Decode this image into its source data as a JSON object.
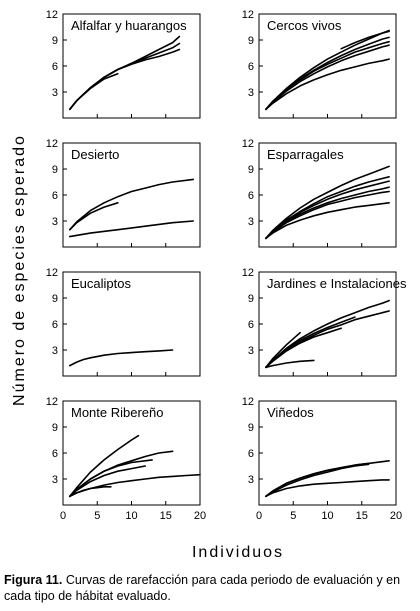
{
  "caption": {
    "label": "Figura 11.",
    "text": "Curvas de rarefacción para cada periodo de evaluación y en cada tipo de hábitat evaluado."
  },
  "axes": {
    "ylabel": "Número de especies esperado",
    "xlabel": "Individuos"
  },
  "chart_data": [
    {
      "type": "line",
      "title": "Alfalfar y huarangos",
      "xlim": [
        0,
        20
      ],
      "ylim": [
        0,
        12
      ],
      "xticks": [
        0,
        5,
        10,
        15,
        20
      ],
      "yticks": [
        3,
        6,
        9,
        12
      ],
      "series": [
        {
          "x": [
            1,
            2,
            4,
            6,
            8,
            10,
            12,
            14,
            16,
            17
          ],
          "y": [
            1.0,
            2.0,
            3.5,
            4.7,
            5.6,
            6.3,
            7.1,
            7.9,
            8.7,
            9.4
          ]
        },
        {
          "x": [
            1,
            2,
            4,
            6,
            8,
            10,
            12,
            14,
            16,
            17
          ],
          "y": [
            1.0,
            2.0,
            3.5,
            4.7,
            5.6,
            6.3,
            6.9,
            7.5,
            8.1,
            8.6
          ]
        },
        {
          "x": [
            1,
            2,
            4,
            6,
            8,
            10,
            12,
            14,
            16,
            17
          ],
          "y": [
            1.0,
            2.0,
            3.5,
            4.7,
            5.6,
            6.2,
            6.7,
            7.1,
            7.6,
            7.9
          ]
        },
        {
          "x": [
            1,
            2,
            4,
            6,
            7,
            8
          ],
          "y": [
            1.0,
            2.0,
            3.4,
            4.5,
            4.8,
            5.1
          ]
        }
      ]
    },
    {
      "type": "line",
      "title": "Cercos vivos",
      "xlim": [
        0,
        20
      ],
      "ylim": [
        0,
        12
      ],
      "xticks": [
        0,
        5,
        10,
        15,
        20
      ],
      "yticks": [
        3,
        6,
        9,
        12
      ],
      "series": [
        {
          "x": [
            1,
            2,
            4,
            6,
            8,
            10,
            12,
            14,
            16,
            18,
            19
          ],
          "y": [
            1.0,
            1.9,
            3.4,
            4.7,
            5.8,
            6.8,
            7.6,
            8.4,
            9.1,
            9.8,
            10.1
          ]
        },
        {
          "x": [
            1,
            2,
            4,
            6,
            8,
            10,
            12,
            14,
            16,
            18,
            19
          ],
          "y": [
            1.0,
            1.9,
            3.3,
            4.5,
            5.5,
            6.4,
            7.2,
            7.9,
            8.5,
            9.1,
            9.3
          ]
        },
        {
          "x": [
            1,
            2,
            4,
            6,
            8,
            10,
            12,
            14,
            16,
            18,
            19
          ],
          "y": [
            1.0,
            1.9,
            3.3,
            4.4,
            5.4,
            6.2,
            6.9,
            7.6,
            8.1,
            8.6,
            8.8
          ]
        },
        {
          "x": [
            1,
            2,
            4,
            6,
            8,
            10,
            12,
            14,
            16,
            18,
            19
          ],
          "y": [
            1.0,
            1.8,
            3.1,
            4.2,
            5.1,
            5.9,
            6.6,
            7.2,
            7.7,
            8.2,
            8.4
          ]
        },
        {
          "x": [
            1,
            2,
            4,
            6,
            8,
            10,
            12,
            14,
            16,
            18,
            19
          ],
          "y": [
            1.0,
            1.7,
            2.8,
            3.7,
            4.4,
            5.0,
            5.5,
            5.9,
            6.3,
            6.6,
            6.8
          ]
        },
        {
          "x": [
            12,
            14,
            16,
            18,
            19
          ],
          "y": [
            8.0,
            8.7,
            9.3,
            9.8,
            10.0
          ]
        }
      ]
    },
    {
      "type": "line",
      "title": "Desierto",
      "xlim": [
        0,
        20
      ],
      "ylim": [
        0,
        12
      ],
      "xticks": [
        0,
        5,
        10,
        15,
        20
      ],
      "yticks": [
        3,
        6,
        9,
        12
      ],
      "series": [
        {
          "x": [
            1,
            2,
            4,
            6,
            8,
            10,
            12,
            14,
            16,
            19
          ],
          "y": [
            2.0,
            2.9,
            4.2,
            5.1,
            5.8,
            6.4,
            6.8,
            7.2,
            7.5,
            7.8
          ]
        },
        {
          "x": [
            1,
            2,
            4,
            6,
            8
          ],
          "y": [
            2.0,
            2.8,
            3.9,
            4.6,
            5.1
          ]
        },
        {
          "x": [
            1,
            4,
            8,
            12,
            16,
            19
          ],
          "y": [
            1.2,
            1.6,
            2.0,
            2.4,
            2.8,
            3.0
          ]
        }
      ]
    },
    {
      "type": "line",
      "title": "Esparragales",
      "xlim": [
        0,
        20
      ],
      "ylim": [
        0,
        12
      ],
      "xticks": [
        0,
        5,
        10,
        15,
        20
      ],
      "yticks": [
        3,
        6,
        9,
        12
      ],
      "series": [
        {
          "x": [
            1,
            2,
            4,
            6,
            8,
            10,
            12,
            14,
            16,
            18,
            19
          ],
          "y": [
            1.0,
            1.9,
            3.3,
            4.5,
            5.5,
            6.3,
            7.1,
            7.8,
            8.4,
            9.0,
            9.3
          ]
        },
        {
          "x": [
            1,
            2,
            4,
            6,
            8,
            10,
            12,
            14,
            16,
            18,
            19
          ],
          "y": [
            1.0,
            1.8,
            3.1,
            4.1,
            5.0,
            5.8,
            6.4,
            7.0,
            7.5,
            7.9,
            8.1
          ]
        },
        {
          "x": [
            1,
            2,
            4,
            6,
            8,
            10,
            12,
            14,
            16,
            18,
            19
          ],
          "y": [
            1.0,
            1.8,
            3.0,
            4.0,
            4.8,
            5.5,
            6.1,
            6.6,
            7.0,
            7.4,
            7.6
          ]
        },
        {
          "x": [
            1,
            2,
            4,
            6,
            8,
            10,
            12,
            14,
            16,
            18,
            19
          ],
          "y": [
            1.0,
            1.8,
            2.9,
            3.8,
            4.5,
            5.1,
            5.6,
            6.0,
            6.4,
            6.7,
            6.9
          ]
        },
        {
          "x": [
            1,
            2,
            4,
            6,
            8,
            10,
            12,
            14,
            16,
            18,
            19
          ],
          "y": [
            1.0,
            1.7,
            2.8,
            3.6,
            4.3,
            4.9,
            5.3,
            5.7,
            6.0,
            6.3,
            6.4
          ]
        },
        {
          "x": [
            1,
            2,
            4,
            6,
            8,
            10,
            12,
            14,
            16,
            18,
            19
          ],
          "y": [
            1.0,
            1.6,
            2.5,
            3.1,
            3.6,
            4.0,
            4.3,
            4.6,
            4.8,
            5.0,
            5.1
          ]
        }
      ]
    },
    {
      "type": "line",
      "title": "Eucaliptos",
      "xlim": [
        0,
        20
      ],
      "ylim": [
        0,
        12
      ],
      "xticks": [
        0,
        5,
        10,
        15,
        20
      ],
      "yticks": [
        3,
        6,
        9,
        12
      ],
      "series": [
        {
          "x": [
            1,
            2,
            3,
            4,
            6,
            8,
            10,
            12,
            14,
            16
          ],
          "y": [
            1.2,
            1.6,
            1.9,
            2.1,
            2.4,
            2.6,
            2.7,
            2.8,
            2.9,
            3.0
          ]
        }
      ]
    },
    {
      "type": "line",
      "title": "Jardines e Instalaciones",
      "xlim": [
        0,
        20
      ],
      "ylim": [
        0,
        12
      ],
      "xticks": [
        0,
        5,
        10,
        15,
        20
      ],
      "yticks": [
        3,
        6,
        9,
        12
      ],
      "series": [
        {
          "x": [
            1,
            2,
            4,
            6,
            8,
            10,
            12,
            14,
            16,
            18,
            19
          ],
          "y": [
            1.0,
            1.8,
            3.2,
            4.3,
            5.2,
            6.0,
            6.7,
            7.3,
            7.9,
            8.4,
            8.7
          ]
        },
        {
          "x": [
            1,
            2,
            4,
            6,
            8,
            10,
            12,
            14,
            16,
            18,
            19
          ],
          "y": [
            1.0,
            1.7,
            2.9,
            3.9,
            4.7,
            5.4,
            5.9,
            6.5,
            6.9,
            7.3,
            7.5
          ]
        },
        {
          "x": [
            1,
            2,
            4,
            6,
            8,
            10,
            12,
            14
          ],
          "y": [
            1.0,
            1.8,
            3.1,
            4.1,
            4.9,
            5.6,
            6.2,
            6.8
          ]
        },
        {
          "x": [
            1,
            2,
            4,
            6,
            8,
            10,
            12
          ],
          "y": [
            1.0,
            1.7,
            2.9,
            3.8,
            4.5,
            5.0,
            5.5
          ]
        },
        {
          "x": [
            1,
            2,
            4,
            6
          ],
          "y": [
            1.0,
            2.0,
            3.6,
            5.0
          ]
        },
        {
          "x": [
            1,
            2,
            4,
            6,
            8
          ],
          "y": [
            1.0,
            1.2,
            1.5,
            1.7,
            1.8
          ]
        }
      ]
    },
    {
      "type": "line",
      "title": "Monte Ribereño",
      "xlim": [
        0,
        20
      ],
      "ylim": [
        0,
        12
      ],
      "xticks": [
        0,
        5,
        10,
        15,
        20
      ],
      "yticks": [
        3,
        6,
        9,
        12
      ],
      "series": [
        {
          "x": [
            1,
            2,
            4,
            6,
            8,
            10,
            11
          ],
          "y": [
            1.0,
            2.0,
            3.8,
            5.2,
            6.4,
            7.5,
            8.0
          ]
        },
        {
          "x": [
            1,
            2,
            4,
            6,
            8,
            10,
            12,
            14,
            16
          ],
          "y": [
            1.0,
            1.8,
            3.0,
            3.9,
            4.6,
            5.1,
            5.6,
            6.0,
            6.2
          ]
        },
        {
          "x": [
            1,
            2,
            4,
            6,
            8,
            10,
            13
          ],
          "y": [
            1.0,
            1.8,
            3.0,
            3.9,
            4.5,
            4.9,
            5.2
          ]
        },
        {
          "x": [
            1,
            2,
            4,
            6,
            8,
            10,
            12
          ],
          "y": [
            1.0,
            1.7,
            2.7,
            3.4,
            3.9,
            4.2,
            4.5
          ]
        },
        {
          "x": [
            1,
            2,
            4,
            6,
            8,
            10,
            12,
            14,
            16,
            18,
            20
          ],
          "y": [
            1.0,
            1.4,
            1.9,
            2.3,
            2.6,
            2.8,
            3.0,
            3.2,
            3.3,
            3.4,
            3.5
          ]
        },
        {
          "x": [
            1,
            2,
            3,
            4,
            5,
            6,
            7
          ],
          "y": [
            1.0,
            1.4,
            1.7,
            1.9,
            2.0,
            2.1,
            2.1
          ]
        }
      ]
    },
    {
      "type": "line",
      "title": "Viñedos",
      "xlim": [
        0,
        20
      ],
      "ylim": [
        0,
        12
      ],
      "xticks": [
        0,
        5,
        10,
        15,
        20
      ],
      "yticks": [
        3,
        6,
        9,
        12
      ],
      "series": [
        {
          "x": [
            1,
            2,
            4,
            6,
            8,
            10,
            12,
            14,
            16,
            18,
            19
          ],
          "y": [
            1.0,
            1.6,
            2.5,
            3.1,
            3.6,
            4.0,
            4.3,
            4.6,
            4.8,
            5.0,
            5.1
          ]
        },
        {
          "x": [
            1,
            2,
            4,
            6,
            8,
            10,
            12,
            14,
            16
          ],
          "y": [
            1.0,
            1.6,
            2.5,
            3.1,
            3.6,
            4.0,
            4.3,
            4.6,
            4.8
          ]
        },
        {
          "x": [
            1,
            2,
            4,
            6,
            8,
            10,
            12,
            14,
            16
          ],
          "y": [
            1.0,
            1.5,
            2.3,
            2.9,
            3.4,
            3.8,
            4.2,
            4.5,
            4.7
          ]
        },
        {
          "x": [
            1,
            2,
            4,
            6,
            8,
            10,
            12,
            14,
            16,
            18,
            19
          ],
          "y": [
            1.0,
            1.4,
            1.9,
            2.2,
            2.4,
            2.5,
            2.6,
            2.7,
            2.8,
            2.9,
            2.9
          ]
        }
      ]
    }
  ]
}
